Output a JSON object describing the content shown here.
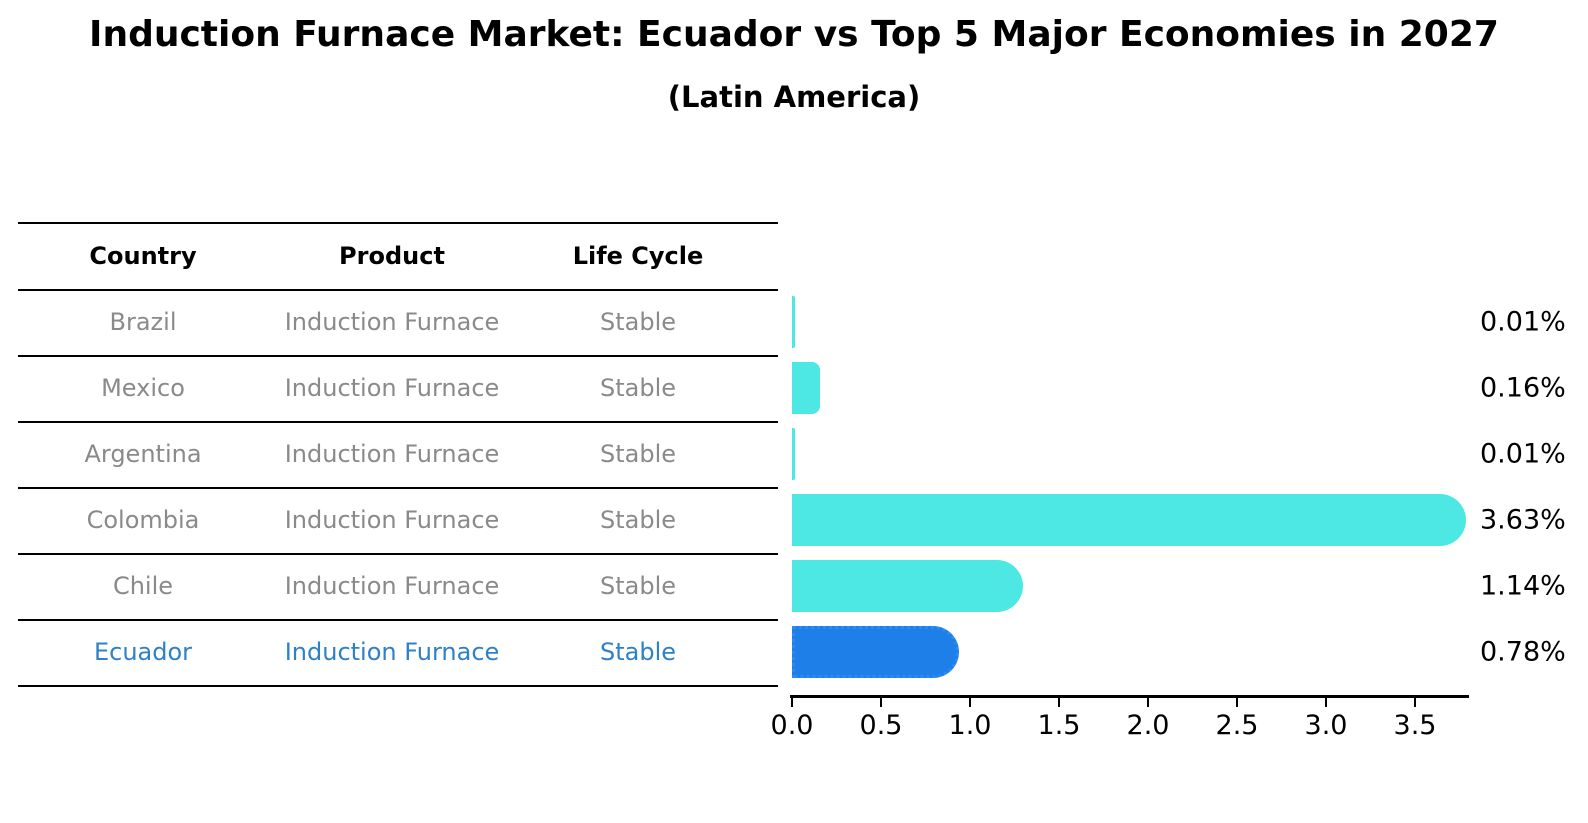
{
  "title": "Induction Furnace Market: Ecuador vs Top 5 Major Economies in 2027",
  "subtitle": "(Latin America)",
  "table": {
    "headers": [
      "Country",
      "Product",
      "Life Cycle"
    ],
    "rows": [
      {
        "country": "Brazil",
        "product": "Induction Furnace",
        "life_cycle": "Stable",
        "value_label": "0.01%",
        "highlight": false
      },
      {
        "country": "Mexico",
        "product": "Induction Furnace",
        "life_cycle": "Stable",
        "value_label": "0.16%",
        "highlight": false
      },
      {
        "country": "Argentina",
        "product": "Induction Furnace",
        "life_cycle": "Stable",
        "value_label": "0.01%",
        "highlight": false
      },
      {
        "country": "Colombia",
        "product": "Induction Furnace",
        "life_cycle": "Stable",
        "value_label": "3.63%",
        "highlight": false
      },
      {
        "country": "Chile",
        "product": "Induction Furnace",
        "life_cycle": "Stable",
        "value_label": "1.14%",
        "highlight": false
      },
      {
        "country": "Ecuador",
        "product": "Induction Furnace",
        "life_cycle": "Stable",
        "value_label": "0.78%",
        "highlight": true
      }
    ]
  },
  "chart_data": {
    "type": "bar",
    "orientation": "horizontal",
    "title": "Induction Furnace Market: Ecuador vs Top 5 Major Economies in 2027",
    "subtitle": "(Latin America)",
    "categories": [
      "Brazil",
      "Mexico",
      "Argentina",
      "Colombia",
      "Chile",
      "Ecuador"
    ],
    "values": [
      0.01,
      0.16,
      0.01,
      3.63,
      1.14,
      0.78
    ],
    "data_labels": [
      "0.01%",
      "0.16%",
      "0.01%",
      "3.63%",
      "1.14%",
      "0.78%"
    ],
    "x_ticks": [
      "0.0",
      "0.5",
      "1.0",
      "1.5",
      "2.0",
      "2.5",
      "3.0",
      "3.5"
    ],
    "xlim": [
      0,
      3.8
    ],
    "grid": false,
    "legend": false,
    "highlight_category": "Ecuador"
  },
  "colors": {
    "bar": "#4de8e4",
    "highlight_bar": "#1e7fe8",
    "highlight_text": "#2e80c8",
    "table_text": "#8a8a8a",
    "axis": "#000000"
  }
}
